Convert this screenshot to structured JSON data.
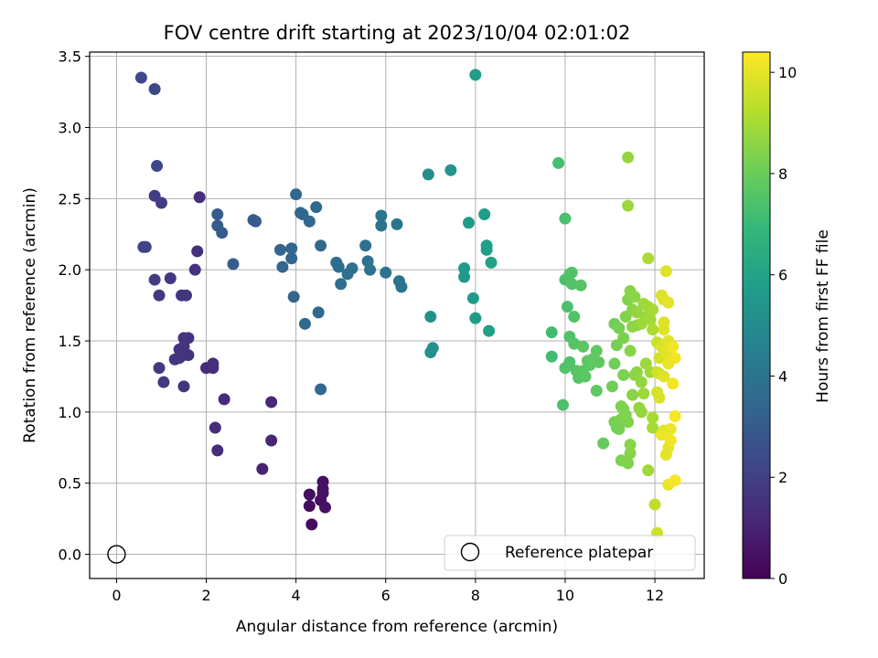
{
  "chart_data": {
    "type": "scatter",
    "title": "FOV centre drift starting at 2023/10/04 02:01:02",
    "xlabel": "Angular distance from reference (arcmin)",
    "ylabel": "Rotation from reference (arcmin)",
    "xlim": [
      -0.6,
      13.1
    ],
    "ylim": [
      -0.17,
      3.53
    ],
    "xticks": [
      0,
      2,
      4,
      6,
      8,
      10,
      12
    ],
    "yticks": [
      0.0,
      0.5,
      1.0,
      1.5,
      2.0,
      2.5,
      3.0,
      3.5
    ],
    "xtick_labels": [
      "0",
      "2",
      "4",
      "6",
      "8",
      "10",
      "12"
    ],
    "ytick_labels": [
      "0.0",
      "0.5",
      "1.0",
      "1.5",
      "2.0",
      "2.5",
      "3.0",
      "3.5"
    ],
    "grid": true,
    "colormap": "viridis",
    "colorbar": {
      "label": "Hours from first FF file",
      "range": [
        0,
        10.4
      ],
      "ticks": [
        0,
        2,
        4,
        6,
        8,
        10
      ],
      "tick_labels": [
        "0",
        "2",
        "4",
        "6",
        "8",
        "10"
      ]
    },
    "reference": {
      "label": "Reference platepar",
      "x": 0,
      "y": 0
    },
    "legend_position": "lower-right",
    "points": [
      [
        4.35,
        0.21,
        0.3
      ],
      [
        4.3,
        0.34,
        0.35
      ],
      [
        4.3,
        0.42,
        0.4
      ],
      [
        4.55,
        0.38,
        0.4
      ],
      [
        4.6,
        0.46,
        0.45
      ],
      [
        4.6,
        0.51,
        0.45
      ],
      [
        4.65,
        0.33,
        0.5
      ],
      [
        4.6,
        0.43,
        0.5
      ],
      [
        3.25,
        0.6,
        1.0
      ],
      [
        3.45,
        0.8,
        1.1
      ],
      [
        3.45,
        1.07,
        1.15
      ],
      [
        2.2,
        0.89,
        1.3
      ],
      [
        2.25,
        0.73,
        1.3
      ],
      [
        2.4,
        1.09,
        1.3
      ],
      [
        2.0,
        1.31,
        1.3
      ],
      [
        2.15,
        1.31,
        1.35
      ],
      [
        2.15,
        1.34,
        1.35
      ],
      [
        1.85,
        2.51,
        1.4
      ],
      [
        1.8,
        2.13,
        1.45
      ],
      [
        1.75,
        2.0,
        1.5
      ],
      [
        1.6,
        1.52,
        1.55
      ],
      [
        1.5,
        1.52,
        1.55
      ],
      [
        1.6,
        1.4,
        1.55
      ],
      [
        1.5,
        1.4,
        1.55
      ],
      [
        1.4,
        1.38,
        1.6
      ],
      [
        1.3,
        1.37,
        1.6
      ],
      [
        1.4,
        1.44,
        1.6
      ],
      [
        1.5,
        1.46,
        1.6
      ],
      [
        1.55,
        1.82,
        1.6
      ],
      [
        1.45,
        1.82,
        1.6
      ],
      [
        1.5,
        1.18,
        1.6
      ],
      [
        1.2,
        1.94,
        1.75
      ],
      [
        0.95,
        1.82,
        1.75
      ],
      [
        0.95,
        1.31,
        1.75
      ],
      [
        1.05,
        1.21,
        1.75
      ],
      [
        1.0,
        2.47,
        1.9
      ],
      [
        0.85,
        2.52,
        1.9
      ],
      [
        0.85,
        1.93,
        1.9
      ],
      [
        0.6,
        2.16,
        2.1
      ],
      [
        0.65,
        2.16,
        2.1
      ],
      [
        0.9,
        2.73,
        2.2
      ],
      [
        0.55,
        3.35,
        2.3
      ],
      [
        0.85,
        3.27,
        2.3
      ],
      [
        2.25,
        2.39,
        3.0
      ],
      [
        2.25,
        2.31,
        3.0
      ],
      [
        2.35,
        2.26,
        3.0
      ],
      [
        2.6,
        2.04,
        3.0
      ],
      [
        3.05,
        2.35,
        3.0
      ],
      [
        3.1,
        2.34,
        3.0
      ],
      [
        3.65,
        2.14,
        3.4
      ],
      [
        3.7,
        2.02,
        3.4
      ],
      [
        3.9,
        2.15,
        3.4
      ],
      [
        3.9,
        2.08,
        3.4
      ],
      [
        3.95,
        1.81,
        3.4
      ],
      [
        4.0,
        2.53,
        3.45
      ],
      [
        4.1,
        2.4,
        3.45
      ],
      [
        4.15,
        2.39,
        3.5
      ],
      [
        4.3,
        2.34,
        3.5
      ],
      [
        4.45,
        2.44,
        3.5
      ],
      [
        4.55,
        2.17,
        3.5
      ],
      [
        4.5,
        1.7,
        3.5
      ],
      [
        4.2,
        1.62,
        3.5
      ],
      [
        4.55,
        1.16,
        3.55
      ],
      [
        4.9,
        2.05,
        3.7
      ],
      [
        4.95,
        2.02,
        3.7
      ],
      [
        5.0,
        1.9,
        3.8
      ],
      [
        5.15,
        1.97,
        3.8
      ],
      [
        5.25,
        2.01,
        3.8
      ],
      [
        5.55,
        2.17,
        3.8
      ],
      [
        5.6,
        2.06,
        3.9
      ],
      [
        5.65,
        2.0,
        3.9
      ],
      [
        5.9,
        2.38,
        4.0
      ],
      [
        5.9,
        2.31,
        4.0
      ],
      [
        6.0,
        1.98,
        4.0
      ],
      [
        6.25,
        2.32,
        4.1
      ],
      [
        6.3,
        1.92,
        4.1
      ],
      [
        6.35,
        1.88,
        4.1
      ],
      [
        6.95,
        2.67,
        5.1
      ],
      [
        7.0,
        1.67,
        5.2
      ],
      [
        7.0,
        1.42,
        5.2
      ],
      [
        7.05,
        1.45,
        5.2
      ],
      [
        7.45,
        2.7,
        5.4
      ],
      [
        7.75,
        2.01,
        5.6
      ],
      [
        7.75,
        1.95,
        5.6
      ],
      [
        7.85,
        2.33,
        5.7
      ],
      [
        7.95,
        1.8,
        5.7
      ],
      [
        8.0,
        1.66,
        5.7
      ],
      [
        8.0,
        3.37,
        5.8
      ],
      [
        8.2,
        2.39,
        5.8
      ],
      [
        8.25,
        2.17,
        5.8
      ],
      [
        8.25,
        2.14,
        5.8
      ],
      [
        8.3,
        1.57,
        5.9
      ],
      [
        8.35,
        2.05,
        5.9
      ],
      [
        9.7,
        1.56,
        7.2
      ],
      [
        9.7,
        1.39,
        7.2
      ],
      [
        9.85,
        2.75,
        7.3
      ],
      [
        9.95,
        1.05,
        7.4
      ],
      [
        10.0,
        2.36,
        7.4
      ],
      [
        10.0,
        1.93,
        7.4
      ],
      [
        10.05,
        1.74,
        7.4
      ],
      [
        10.1,
        1.97,
        7.5
      ],
      [
        10.1,
        1.53,
        7.5
      ],
      [
        10.15,
        1.98,
        7.5
      ],
      [
        10.15,
        1.9,
        7.5
      ],
      [
        10.0,
        1.31,
        7.5
      ],
      [
        10.2,
        1.67,
        7.5
      ],
      [
        10.1,
        1.35,
        7.5
      ],
      [
        10.2,
        1.48,
        7.6
      ],
      [
        10.25,
        1.29,
        7.6
      ],
      [
        10.3,
        1.24,
        7.6
      ],
      [
        10.35,
        1.89,
        7.6
      ],
      [
        10.4,
        1.46,
        7.7
      ],
      [
        10.4,
        1.29,
        7.7
      ],
      [
        10.45,
        1.25,
        7.7
      ],
      [
        10.5,
        1.36,
        7.7
      ],
      [
        10.55,
        1.33,
        7.7
      ],
      [
        10.6,
        1.37,
        7.8
      ],
      [
        10.7,
        1.43,
        7.8
      ],
      [
        10.7,
        1.15,
        7.8
      ],
      [
        10.75,
        1.35,
        7.8
      ],
      [
        10.85,
        0.78,
        7.9
      ],
      [
        11.05,
        1.18,
        8.1
      ],
      [
        11.1,
        1.62,
        8.1
      ],
      [
        11.1,
        1.34,
        8.1
      ],
      [
        11.1,
        0.93,
        8.2
      ],
      [
        11.15,
        1.47,
        8.2
      ],
      [
        11.15,
        0.89,
        8.2
      ],
      [
        11.2,
        1.59,
        8.2
      ],
      [
        11.2,
        0.88,
        8.2
      ],
      [
        11.25,
        1.04,
        8.3
      ],
      [
        11.25,
        0.95,
        8.3
      ],
      [
        11.25,
        0.66,
        8.3
      ],
      [
        11.3,
        1.52,
        8.3
      ],
      [
        11.3,
        1.26,
        8.3
      ],
      [
        11.3,
        1.02,
        8.3
      ],
      [
        11.35,
        1.67,
        8.4
      ],
      [
        11.35,
        0.98,
        8.4
      ],
      [
        11.4,
        1.79,
        8.4
      ],
      [
        11.4,
        0.93,
        8.4
      ],
      [
        11.4,
        0.64,
        8.4
      ],
      [
        11.45,
        1.85,
        8.5
      ],
      [
        11.45,
        1.43,
        8.5
      ],
      [
        11.45,
        0.71,
        8.5
      ],
      [
        11.5,
        1.72,
        8.5
      ],
      [
        11.5,
        1.12,
        8.5
      ],
      [
        11.45,
        0.77,
        8.5
      ],
      [
        11.55,
        1.81,
        8.6
      ],
      [
        11.55,
        1.26,
        8.6
      ],
      [
        11.6,
        1.61,
        8.6
      ],
      [
        11.6,
        1.28,
        8.6
      ],
      [
        11.65,
        1.03,
        8.7
      ],
      [
        11.7,
        1.21,
        8.7
      ],
      [
        11.7,
        1.0,
        8.7
      ],
      [
        11.75,
        1.76,
        8.8
      ],
      [
        11.75,
        1.13,
        8.8
      ],
      [
        11.8,
        1.67,
        8.8
      ],
      [
        11.8,
        1.34,
        8.8
      ],
      [
        11.85,
        1.74,
        8.9
      ],
      [
        11.85,
        0.59,
        8.9
      ],
      [
        11.9,
        1.65,
        8.9
      ],
      [
        11.9,
        1.28,
        8.9
      ],
      [
        11.95,
        1.72,
        9.0
      ],
      [
        11.95,
        0.96,
        9.0
      ],
      [
        11.95,
        0.89,
        9.0
      ],
      [
        11.4,
        2.79,
        8.7
      ],
      [
        11.4,
        2.45,
        8.8
      ],
      [
        11.85,
        2.08,
        9.1
      ],
      [
        12.0,
        0.35,
        9.4
      ],
      [
        12.05,
        0.15,
        9.6
      ],
      [
        12.05,
        1.49,
        9.6
      ],
      [
        12.05,
        1.28,
        9.6
      ],
      [
        12.05,
        1.14,
        9.7
      ],
      [
        12.1,
        1.38,
        9.7
      ],
      [
        12.1,
        1.27,
        9.7
      ],
      [
        12.1,
        1.1,
        9.8
      ],
      [
        12.15,
        1.82,
        9.8
      ],
      [
        12.15,
        1.46,
        9.8
      ],
      [
        12.2,
        1.79,
        9.9
      ],
      [
        12.2,
        1.63,
        9.9
      ],
      [
        12.2,
        1.25,
        9.9
      ],
      [
        12.2,
        0.87,
        9.9
      ],
      [
        12.25,
        1.99,
        9.9
      ],
      [
        12.25,
        1.42,
        10.0
      ],
      [
        12.25,
        0.7,
        10.0
      ],
      [
        12.3,
        1.77,
        10.0
      ],
      [
        12.3,
        1.5,
        10.0
      ],
      [
        12.3,
        0.75,
        10.0
      ],
      [
        12.3,
        0.49,
        10.1
      ],
      [
        12.35,
        0.88,
        10.1
      ],
      [
        12.4,
        1.46,
        10.2
      ],
      [
        12.45,
        1.38,
        10.2
      ],
      [
        12.45,
        0.52,
        10.3
      ],
      [
        12.45,
        0.97,
        10.3
      ],
      [
        12.15,
        0.84,
        10.1
      ],
      [
        12.35,
        0.8,
        10.2
      ],
      [
        12.4,
        1.2,
        10.2
      ],
      [
        12.2,
        1.58,
        9.9
      ],
      [
        12.3,
        1.34,
        10.1
      ],
      [
        11.95,
        1.58,
        9.1
      ],
      [
        11.7,
        1.62,
        8.8
      ],
      [
        11.6,
        1.7,
        8.7
      ],
      [
        11.5,
        1.6,
        8.6
      ]
    ]
  }
}
